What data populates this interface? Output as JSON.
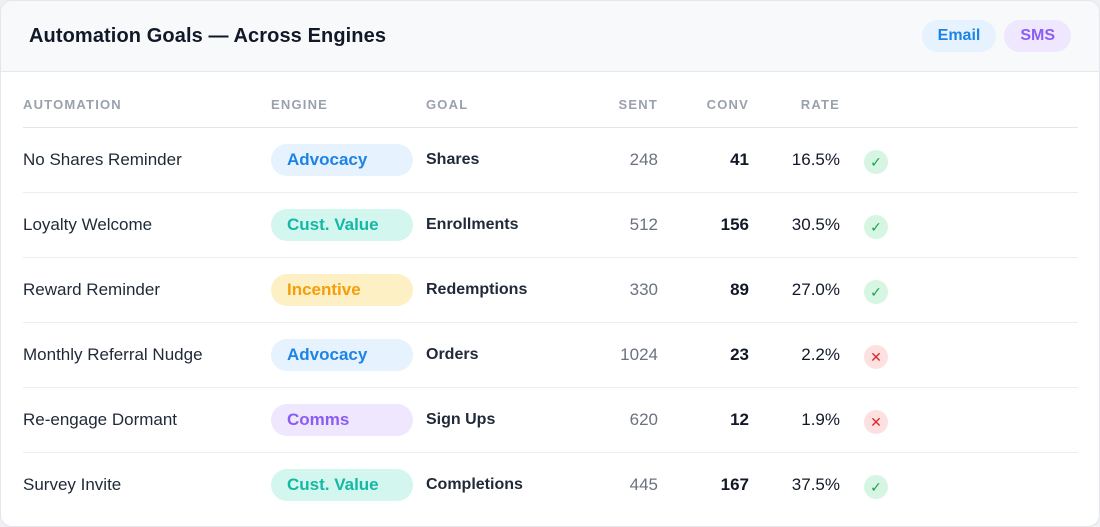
{
  "header": {
    "title": "Automation Goals — Across Engines",
    "chips": [
      "Email",
      "SMS"
    ]
  },
  "table": {
    "columns": [
      "AUTOMATION",
      "ENGINE",
      "GOAL",
      "SENT",
      "CONV",
      "RATE"
    ],
    "rows": [
      {
        "automation": "No Shares Reminder",
        "engine": "Advocacy",
        "goal": "Shares",
        "sent": "248",
        "conv": "41",
        "rate": "16.5%",
        "status": "met"
      },
      {
        "automation": "Loyalty Welcome",
        "engine": "Cust. Value",
        "goal": "Enrollments",
        "sent": "512",
        "conv": "156",
        "rate": "30.5%",
        "status": "met"
      },
      {
        "automation": "Reward Reminder",
        "engine": "Incentive",
        "goal": "Redemptions",
        "sent": "330",
        "conv": "89",
        "rate": "27.0%",
        "status": "met"
      },
      {
        "automation": "Monthly Referral Nudge",
        "engine": "Advocacy",
        "goal": "Orders",
        "sent": "1024",
        "conv": "23",
        "rate": "2.2%",
        "status": "missed"
      },
      {
        "automation": "Re-engage Dormant",
        "engine": "Comms",
        "goal": "Sign Ups",
        "sent": "620",
        "conv": "12",
        "rate": "1.9%",
        "status": "missed"
      },
      {
        "automation": "Survey Invite",
        "engine": "Cust. Value",
        "goal": "Completions",
        "sent": "445",
        "conv": "167",
        "rate": "37.5%",
        "status": "met"
      }
    ]
  },
  "engine_colors": {
    "Advocacy": {
      "bg": "#e6f2fe",
      "fg": "#1d84e6"
    },
    "Cust. Value": {
      "bg": "#d3f6ee",
      "fg": "#14b8a6"
    },
    "Incentive": {
      "bg": "#fdf0c4",
      "fg": "#f59e0b"
    },
    "Comms": {
      "bg": "#efe7fe",
      "fg": "#8b5cf6"
    }
  },
  "status_icons": {
    "met": "check-icon",
    "missed": "x-icon"
  }
}
